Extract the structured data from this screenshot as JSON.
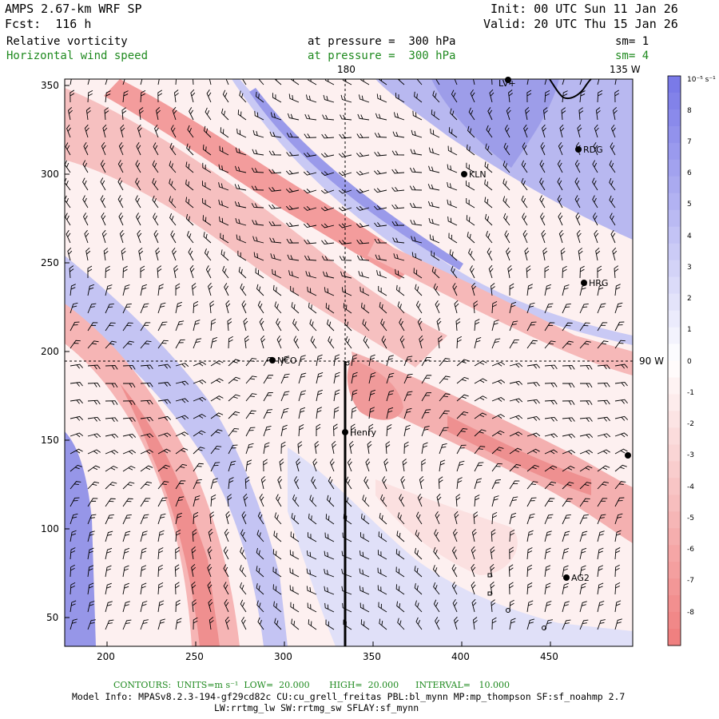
{
  "header": {
    "model": "AMPS 2.67-km WRF SP",
    "fcst": "Fcst:  116 h",
    "init": "Init: 00 UTC Sun 11 Jan 26",
    "valid": "Valid: 20 UTC Thu 15 Jan 26",
    "field1": "Relative vorticity",
    "field1_level": "at pressure =  300 hPa",
    "field1_sm": "sm= 1",
    "field2": "Horizontal wind speed",
    "field2_level": "at pressure =  300 hPa",
    "field2_sm": "sm= 4"
  },
  "map": {
    "x_ticks": [
      "200",
      "250",
      "300",
      "350",
      "400",
      "450"
    ],
    "y_ticks": [
      "350",
      "300",
      "250",
      "200",
      "150",
      "100",
      "50"
    ],
    "meridian_label": "180",
    "lon_label": "135 W",
    "lat_label": "90 W",
    "stations": [
      {
        "name": "NCO"
      },
      {
        "name": "KLN"
      },
      {
        "name": "RDG"
      },
      {
        "name": "HRG"
      },
      {
        "name": "Henry"
      },
      {
        "name": "AG2"
      },
      {
        "name": "LV+"
      }
    ]
  },
  "colorbar": {
    "unit": "10⁻⁵ s⁻¹",
    "labels": [
      "8",
      "7",
      "6",
      "5",
      "4",
      "3",
      "2",
      "1",
      "0",
      "-1",
      "-2",
      "-3",
      "-4",
      "-5",
      "-6",
      "-7",
      "-8"
    ],
    "colors": {
      "positive": "#7a7ae8",
      "negative": "#f08080",
      "zero": "#ffffff"
    }
  },
  "footer": {
    "contours": "CONTOURS:  UNITS=m s⁻¹  LOW=  20.000       HIGH=  20.000      INTERVAL=   10.000",
    "model_info": "Model Info: MPASv8.2.3-194-gf29cd82c CU:cu_grell_freitas PBL:bl_mynn MP:mp_thompson SF:sf_noahmp 2.7",
    "model_info2": "LW:rrtmg_lw SW:rrtmg_sw SFLAY:sf_mynn"
  }
}
